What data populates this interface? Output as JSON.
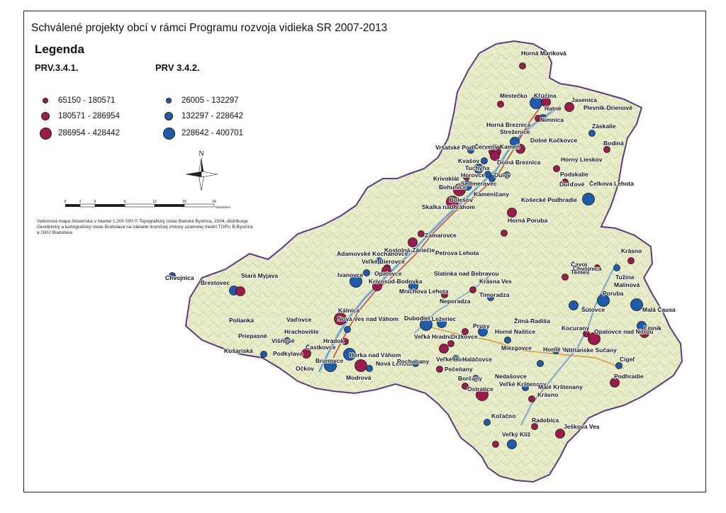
{
  "title": "Schválené projekty obcí v rámci Programu rozvoja vidieka SR 2007-2013",
  "legend": {
    "title": "Legenda",
    "groups": [
      {
        "heading": "PRV.3.4.1.",
        "color": "#9b1b4c",
        "classes": [
          {
            "label": "65150 - 180571",
            "size": "small"
          },
          {
            "label": "180571 - 286954",
            "size": "medium"
          },
          {
            "label": "286954 - 428442",
            "size": "large"
          }
        ]
      },
      {
        "heading": "PRV 3.4.2.",
        "color": "#1f5ba8",
        "classes": [
          {
            "label": "26005 - 132297",
            "size": "small"
          },
          {
            "label": "132297 - 228642",
            "size": "medium"
          },
          {
            "label": "228642 - 400701",
            "size": "large"
          }
        ]
      }
    ]
  },
  "north_arrow": {
    "label": "N",
    "icon": "north-arrow-icon"
  },
  "scale_bar": {
    "ticks": [
      "6",
      "3",
      "0",
      "6",
      "12",
      "18",
      "24"
    ],
    "unit": "Kilometers"
  },
  "credits": "Vektorová mapa Slovenska v mierke 1:200 000 © Topografický ústav Banská Bystrica, 2004, distribuuje Geodetický a kartografický ústav Bratislava na základe licenčnej zmluvy uzavretej medzi TOPU B.Bystrica a GKÚ Bratislava",
  "colors": {
    "map_fill": "#e9eed0",
    "map_border": "#5b3a86",
    "prv341": "#9b1b4c",
    "prv342": "#1f5ba8"
  },
  "markers": [
    {
      "program": "PRV.3.4.1.",
      "size": "small"
    },
    {
      "program": "PRV.3.4.1.",
      "size": "small"
    },
    {
      "program": "PRV 3.4.2.",
      "size": "large"
    },
    {
      "program": "PRV.3.4.1.",
      "size": "medium"
    },
    {
      "program": "PRV.3.4.1.",
      "size": "medium"
    },
    {
      "program": "PRV 3.4.2.",
      "size": "small"
    },
    {
      "program": "PRV.3.4.1.",
      "size": "small"
    },
    {
      "program": "PRV 3.4.2.",
      "size": "small"
    },
    {
      "program": "PRV 3.4.2.",
      "size": "medium"
    },
    {
      "program": "PRV.3.4.1.",
      "size": "medium"
    },
    {
      "program": "PRV.3.4.1.",
      "size": "large"
    },
    {
      "program": "PRV 3.4.2.",
      "size": "small"
    },
    {
      "program": "PRV.3.4.1.",
      "size": "medium"
    },
    {
      "program": "PRV 3.4.2.",
      "size": "small"
    },
    {
      "program": "PRV 3.4.2.",
      "size": "medium"
    },
    {
      "program": "PRV.3.4.1.",
      "size": "small"
    },
    {
      "program": "PRV 3.4.2.",
      "size": "small"
    },
    {
      "program": "PRV 3.4.2.",
      "size": "small"
    },
    {
      "program": "PRV 3.4.2.",
      "size": "small"
    },
    {
      "program": "PRV.3.4.1.",
      "size": "small"
    },
    {
      "program": "PRV.3.4.1.",
      "size": "small"
    },
    {
      "program": "PRV 3.4.2.",
      "size": "large"
    },
    {
      "program": "PRV.3.4.1.",
      "size": "large"
    },
    {
      "program": "PRV 3.4.2.",
      "size": "medium"
    },
    {
      "program": "PRV.3.4.1.",
      "size": "large"
    },
    {
      "program": "PRV.3.4.1.",
      "size": "medium"
    },
    {
      "program": "PRV.3.4.1.",
      "size": "small"
    },
    {
      "program": "PRV.3.4.1.",
      "size": "small"
    },
    {
      "program": "PRV.3.4.1.",
      "size": "medium"
    },
    {
      "program": "PRV 3.4.2.",
      "size": "small"
    },
    {
      "program": "PRV.3.4.1.",
      "size": "small"
    },
    {
      "program": "PRV 3.4.2.",
      "size": "small"
    },
    {
      "program": "PRV.3.4.1.",
      "size": "medium"
    },
    {
      "program": "PRV 3.4.2.",
      "size": "large"
    },
    {
      "program": "PRV.3.4.1.",
      "size": "medium"
    },
    {
      "program": "PRV 3.4.2.",
      "size": "medium"
    },
    {
      "program": "PRV.3.4.1.",
      "size": "small"
    },
    {
      "program": "PRV.3.4.1.",
      "size": "small"
    },
    {
      "program": "PRV 3.4.2.",
      "size": "small"
    },
    {
      "program": "PRV 3.4.2.",
      "size": "medium"
    },
    {
      "program": "PRV.3.4.1.",
      "size": "medium"
    },
    {
      "program": "PRV 3.4.2.",
      "size": "small"
    },
    {
      "program": "PRV.3.4.1.",
      "size": "large"
    },
    {
      "program": "PRV 3.4.2.",
      "size": "small"
    },
    {
      "program": "PRV.3.4.1.",
      "size": "small"
    },
    {
      "program": "PRV 3.4.2.",
      "size": "large"
    },
    {
      "program": "PRV.3.4.1.",
      "size": "medium"
    },
    {
      "program": "PRV 3.4.2.",
      "size": "small"
    },
    {
      "program": "PRV 3.4.2.",
      "size": "small"
    },
    {
      "program": "PRV 3.4.2.",
      "size": "large"
    },
    {
      "program": "PRV 3.4.2.",
      "size": "medium"
    },
    {
      "program": "PRV.3.4.1.",
      "size": "small"
    },
    {
      "program": "PRV.3.4.1.",
      "size": "small"
    },
    {
      "program": "PRV 3.4.2.",
      "size": "medium"
    },
    {
      "program": "PRV 3.4.2.",
      "size": "small"
    },
    {
      "program": "PRV.3.4.1.",
      "size": "small"
    },
    {
      "program": "PRV 3.4.2.",
      "size": "small"
    },
    {
      "program": "PRV.3.4.1.",
      "size": "small"
    },
    {
      "program": "PRV.3.4.1.",
      "size": "large"
    },
    {
      "program": "PRV 3.4.2.",
      "size": "small"
    },
    {
      "program": "PRV.3.4.1.",
      "size": "small"
    },
    {
      "program": "PRV 3.4.2.",
      "size": "small"
    },
    {
      "program": "PRV 3.4.2.",
      "size": "small"
    },
    {
      "program": "PRV.3.4.1.",
      "size": "small"
    },
    {
      "program": "PRV.3.4.1.",
      "size": "large"
    },
    {
      "program": "PRV 3.4.2.",
      "size": "small"
    },
    {
      "program": "PRV.3.4.1.",
      "size": "medium"
    },
    {
      "program": "PRV 3.4.2.",
      "size": "large"
    },
    {
      "program": "PRV 3.4.2.",
      "size": "medium"
    },
    {
      "program": "PRV.3.4.1.",
      "size": "medium"
    },
    {
      "program": "PRV.3.4.1.",
      "size": "small"
    },
    {
      "program": "PRV 3.4.2.",
      "size": "small"
    },
    {
      "program": "PRV 3.4.2.",
      "size": "large"
    },
    {
      "program": "PRV.3.4.1.",
      "size": "small"
    },
    {
      "program": "PRV.3.4.1.",
      "size": "small"
    },
    {
      "program": "PRV 3.4.2.",
      "size": "medium"
    },
    {
      "program": "PRV.3.4.1.",
      "size": "small"
    },
    {
      "program": "PRV.3.4.1.",
      "size": "medium"
    },
    {
      "program": "PRV 3.4.2.",
      "size": "medium"
    },
    {
      "program": "PRV.3.4.1.",
      "size": "small"
    },
    {
      "program": "PRV 3.4.2.",
      "size": "small"
    },
    {
      "program": "PRV.3.4.1.",
      "size": "large"
    },
    {
      "program": "PRV 3.4.2.",
      "size": "small"
    },
    {
      "program": "PRV 3.4.2.",
      "size": "large"
    },
    {
      "program": "PRV 3.4.2.",
      "size": "small"
    },
    {
      "program": "PRV.3.4.1.",
      "size": "medium"
    },
    {
      "program": "PRV 3.4.2.",
      "size": "small"
    },
    {
      "program": "PRV.3.4.1.",
      "size": "small"
    }
  ],
  "places": [
    "Horná Mariková",
    "Mestečko",
    "Kľúčina",
    "Hatné",
    "Jasenica",
    "Plevník-Drienové",
    "Nimnica",
    "Záskalie",
    "Bodiná",
    "Horná Breznica",
    "Streženice",
    "Dolné Kočkovce",
    "Vršatské Podhradie",
    "Červený Kameň",
    "Kvašov",
    "Tuchyňa",
    "Dolná Breznica",
    "Horovce",
    "Dulov",
    "Horný Lieskov",
    "Podskalie",
    "Ďurďové",
    "Čelkova Lehota",
    "Krivoklát",
    "Bohunice",
    "Sedmerovec",
    "Kameničany",
    "Bolešov",
    "Košecké Podhradie",
    "Skalka nad Váhom",
    "Horná Poruba",
    "Zamarovce",
    "Kostolná-Záriečie",
    "Adamovské Kochanovce",
    "Veľké Bierovce",
    "Petrova Lehota",
    "Ivanovce",
    "Opatovce",
    "Krivosúd-Bodovka",
    "Slatinka nad Bebravou",
    "Krásna Ves",
    "Timoradza",
    "Mníchova Lehota",
    "Neporadza",
    "Chvojnica",
    "Stará Myjava",
    "Brestovec",
    "Kálnica",
    "Dubodiel",
    "Čavoj",
    "Temeš",
    "Chvojnica",
    "Krásno",
    "Tužina",
    "Malinová",
    "Poruba",
    "Šútovce",
    "Malá Čausa",
    "Lipník",
    "Kocurany",
    "Opatovce nad Nitrou",
    "Žitná-Radiša",
    "Nová Ves nad Váhom",
    "Ležeriec",
    "Veľká Hradná",
    "Prusy",
    "Držkovce",
    "Horné Naštice",
    "Vaďovce",
    "Hrachovište",
    "Višňové",
    "Polianka",
    "Priepasné",
    "Košariská",
    "Podkylava",
    "Častkovce",
    "Očkov",
    "Brunovce",
    "Horka nad Váhom",
    "Hrádok",
    "Nová Lehota",
    "Pochabany",
    "Veľké Hoste",
    "Haláčovce",
    "Miezgovce",
    "Horné Vestenice",
    "Nitrianske Sučany",
    "Cigeľ",
    "Podhradie",
    "Modrová",
    "Pečeňany",
    "Borčany",
    "Ostratice",
    "Nedašovce",
    "Veľké Krštenany",
    "Malé Krštenany",
    "Krásno",
    "Koľačno",
    "Radobica",
    "Ješkova Ves",
    "Veľký Klíž"
  ]
}
